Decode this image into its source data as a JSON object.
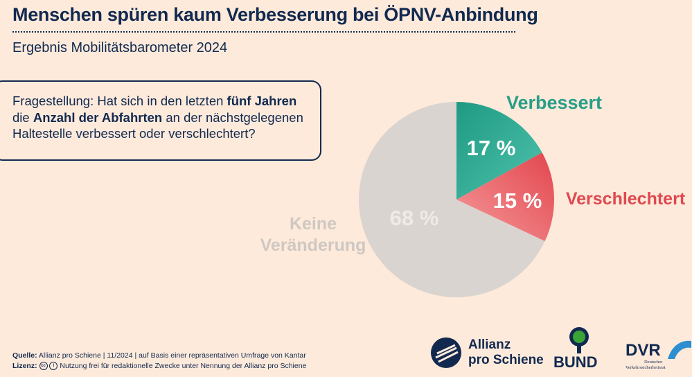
{
  "header": {
    "title": "Menschen spüren kaum Verbesserung bei ÖPNV-Anbindung",
    "subtitle": "Ergebnis Mobilitätsbarometer 2024"
  },
  "question": {
    "part1": "Fragestellung: Hat sich in den letzten ",
    "bold1": "fünf Jahren",
    "part2": " die ",
    "bold2": "Anzahl der Abfahrten",
    "part3": " an der nächstgelegenen Haltestelle verbessert oder verschlechtert?"
  },
  "chart_data": {
    "type": "pie",
    "title": "Ergebnis Mobilitätsbarometer 2024",
    "slices": [
      {
        "label": "Verbessert",
        "value": 17,
        "display": "17 %",
        "color": "#2a9e87",
        "label_color": "#2a9e87"
      },
      {
        "label": "Verschlechtert",
        "value": 15,
        "display": "15 %",
        "color": "#e8585c",
        "label_color": "#e0484f"
      },
      {
        "label": "Keine Veränderung",
        "label_lines": [
          "Keine",
          "Veränderung"
        ],
        "value": 68,
        "display": "68 %",
        "color": "#d9d4cf",
        "label_color": "#cfc8c2"
      }
    ],
    "start_angle_deg": 0,
    "direction": "clockwise"
  },
  "footer": {
    "source_label": "Quelle:",
    "source_text": " Allianz pro Schiene | 11/2024 | auf Basis einer repräsentativen Umfrage von Kantar",
    "license_label": "Lizenz:",
    "license_icons": "cc-by-icons",
    "license_text": " Nutzung frei für redaktionelle Zwecke unter Nennung der Allianz pro Schiene"
  },
  "logos": {
    "allianz_line1": "Allianz",
    "allianz_line2": "pro Schiene",
    "bund": "BUND",
    "dvr": "DVR",
    "dvr_sub1": "Deutscher",
    "dvr_sub2": "Verkehrssicherheitsrat"
  }
}
